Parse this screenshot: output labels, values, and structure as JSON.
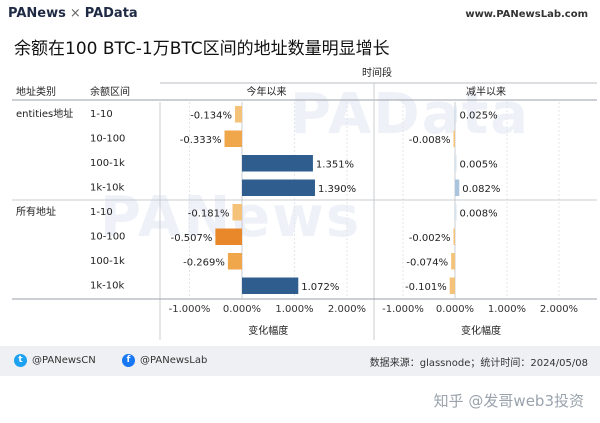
{
  "header": {
    "logo_left": "PANews",
    "logo_sep": "×",
    "logo_right": "PAData",
    "site": "www.PANewsLab.com"
  },
  "title": "余额在100 BTC-1万BTC区间的地址数量明显增长",
  "watermarks": [
    "PAData",
    "PANews"
  ],
  "chart_data": {
    "type": "bar",
    "orientation": "horizontal",
    "title": "余额在100 BTC-1万BTC区间的地址数量明显增长",
    "column_header_time": "时间段",
    "column_header_type": "地址类别",
    "column_header_range": "余额区间",
    "groups": [
      "entities地址",
      "所有地址"
    ],
    "ranges": [
      "1-10",
      "10-100",
      "100-1k",
      "1k-10k"
    ],
    "panels": [
      {
        "name": "今年以来",
        "xlabel": "变化幅度",
        "xlim": [
          -1.0,
          2.0
        ],
        "ticks": [
          "-1.000%",
          "0.000%",
          "1.000%",
          "2.000%"
        ],
        "values": [
          [
            -0.134,
            -0.333,
            1.351,
            1.39
          ],
          [
            -0.181,
            -0.507,
            -0.269,
            1.072
          ]
        ],
        "labels": [
          [
            "-0.134%",
            "-0.333%",
            "1.351%",
            "1.390%"
          ],
          [
            "-0.181%",
            "-0.507%",
            "-0.269%",
            "1.072%"
          ]
        ]
      },
      {
        "name": "减半以来",
        "xlabel": "变化幅度",
        "xlim": [
          -1.0,
          2.0
        ],
        "ticks": [
          "-1.000%",
          "0.000%",
          "1.000%",
          "2.000%"
        ],
        "values": [
          [
            0.025,
            -0.008,
            0.005,
            0.082
          ],
          [
            0.008,
            -0.002,
            -0.074,
            -0.101
          ]
        ],
        "labels": [
          [
            "0.025%",
            "-0.008%",
            "0.005%",
            "0.082%"
          ],
          [
            "0.008%",
            "-0.002%",
            "-0.074%",
            "-0.101%"
          ]
        ]
      }
    ],
    "grid": true,
    "colors": {
      "neg_light": "#f5c27a",
      "neg_mid": "#f0a64a",
      "neg_strong": "#e8882a",
      "pos_light": "#d5e3ef",
      "pos_mid": "#a9c4dc",
      "pos_strong": "#2e5d8e"
    }
  },
  "footer": {
    "twitter": "@PANewsCN",
    "facebook": "@PANewsLab",
    "source": "数据来源：glassnode；统计时间：2024/05/08",
    "twitter_icon": "twitter-icon",
    "facebook_icon": "facebook-icon"
  },
  "zhihu": "知乎 @发哥web3投资"
}
